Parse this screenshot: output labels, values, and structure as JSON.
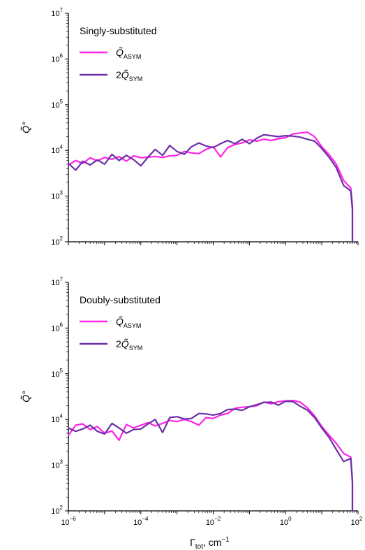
{
  "chart_data": [
    {
      "type": "line",
      "title": "Singly-substituted",
      "ylabel": "Q̃°",
      "xlabel": "",
      "x_scale": "log",
      "y_scale": "log",
      "xlim": [
        1e-06,
        100
      ],
      "ylim": [
        100,
        10000000
      ],
      "grid": false,
      "legend_position": "top-left",
      "y_ticks": [
        {
          "base": "10",
          "exp": "2",
          "value": 100
        },
        {
          "base": "10",
          "exp": "3",
          "value": 1000
        },
        {
          "base": "10",
          "exp": "4",
          "value": 10000
        },
        {
          "base": "10",
          "exp": "5",
          "value": 100000
        },
        {
          "base": "10",
          "exp": "6",
          "value": 1000000
        },
        {
          "base": "10",
          "exp": "7",
          "value": 10000000
        }
      ],
      "x_ticks": [],
      "series": [
        {
          "name_prefix": "",
          "name_main": "Q̃",
          "name_sub": "ASYM",
          "color": "#ff22e8",
          "x": [
            1e-06,
            1.6e-06,
            2.5e-06,
            4e-06,
            6.3e-06,
            1e-05,
            1.6e-05,
            2.5e-05,
            4e-05,
            6.3e-05,
            0.0001,
            0.00016,
            0.00025,
            0.0004,
            0.00063,
            0.001,
            0.0016,
            0.0025,
            0.004,
            0.0063,
            0.01,
            0.016,
            0.025,
            0.04,
            0.063,
            0.1,
            0.16,
            0.25,
            0.4,
            0.63,
            1,
            1.6,
            2.5,
            4,
            6.3,
            10,
            16,
            25,
            40,
            63,
            70
          ],
          "y": [
            4800,
            6000,
            5200,
            6900,
            5900,
            7000,
            6400,
            7300,
            5800,
            7600,
            6900,
            7100,
            7400,
            7000,
            7600,
            7800,
            9500,
            8800,
            8500,
            10500,
            12000,
            7200,
            11500,
            13500,
            14500,
            17000,
            16000,
            17500,
            16500,
            18000,
            19000,
            23000,
            24000,
            25000,
            20000,
            12000,
            8000,
            5000,
            2200,
            1500,
            600
          ]
        },
        {
          "name_prefix": "2",
          "name_main": "Q̃",
          "name_sub": "SYM",
          "color": "#6a2fa8",
          "x": [
            1e-06,
            1.6e-06,
            2.5e-06,
            4e-06,
            6.3e-06,
            1e-05,
            1.6e-05,
            2.5e-05,
            4e-05,
            6.3e-05,
            0.0001,
            0.00016,
            0.00025,
            0.0004,
            0.00063,
            0.001,
            0.0016,
            0.0025,
            0.004,
            0.0063,
            0.01,
            0.016,
            0.025,
            0.04,
            0.063,
            0.1,
            0.16,
            0.25,
            0.4,
            0.63,
            1,
            1.6,
            2.5,
            4,
            6.3,
            10,
            16,
            25,
            40,
            63,
            70
          ],
          "y": [
            5200,
            3700,
            5800,
            4800,
            6200,
            5000,
            8200,
            6000,
            7800,
            6300,
            4600,
            7200,
            10500,
            7800,
            12800,
            9500,
            8200,
            12000,
            14500,
            12500,
            11500,
            14000,
            16500,
            14000,
            17500,
            14000,
            18500,
            22000,
            21000,
            20000,
            21000,
            20500,
            19500,
            17500,
            16000,
            11000,
            7000,
            4200,
            1700,
            1300,
            500
          ]
        }
      ]
    },
    {
      "type": "line",
      "title": "Doubly-substituted",
      "ylabel": "Q̃°",
      "xlabel_base": "Γ",
      "xlabel_sub": "tot",
      "xlabel_rest": ", cm",
      "xlabel_exp": "−1",
      "x_scale": "log",
      "y_scale": "log",
      "xlim": [
        1e-06,
        100
      ],
      "ylim": [
        100,
        10000000
      ],
      "grid": false,
      "legend_position": "top-left",
      "y_ticks": [
        {
          "base": "10",
          "exp": "2",
          "value": 100
        },
        {
          "base": "10",
          "exp": "3",
          "value": 1000
        },
        {
          "base": "10",
          "exp": "4",
          "value": 10000
        },
        {
          "base": "10",
          "exp": "5",
          "value": 100000
        },
        {
          "base": "10",
          "exp": "6",
          "value": 1000000
        },
        {
          "base": "10",
          "exp": "7",
          "value": 10000000
        }
      ],
      "x_ticks": [
        {
          "base": "10",
          "exp": "−6",
          "value": 1e-06
        },
        {
          "base": "10",
          "exp": "−4",
          "value": 0.0001
        },
        {
          "base": "10",
          "exp": "−2",
          "value": 0.01
        },
        {
          "base": "10",
          "exp": "0",
          "value": 1
        },
        {
          "base": "10",
          "exp": "2",
          "value": 100
        }
      ],
      "series": [
        {
          "name_prefix": "",
          "name_main": "Q̃",
          "name_sub": "ASYM",
          "color": "#ff22e8",
          "x": [
            1e-06,
            1.6e-06,
            2.5e-06,
            4e-06,
            6.3e-06,
            1e-05,
            1.6e-05,
            2.5e-05,
            4e-05,
            6.3e-05,
            0.0001,
            0.00016,
            0.00025,
            0.0004,
            0.00063,
            0.001,
            0.0016,
            0.0025,
            0.004,
            0.0063,
            0.01,
            0.016,
            0.025,
            0.04,
            0.063,
            0.1,
            0.16,
            0.25,
            0.4,
            0.63,
            1,
            1.6,
            2.5,
            4,
            6.3,
            10,
            16,
            25,
            40,
            63,
            70
          ],
          "y": [
            4500,
            7500,
            8000,
            6000,
            7000,
            5000,
            5600,
            3500,
            7800,
            6500,
            7500,
            8500,
            7200,
            8200,
            9500,
            9000,
            10000,
            9000,
            7500,
            11000,
            10500,
            12500,
            13500,
            17500,
            18500,
            19000,
            20000,
            24000,
            22000,
            24500,
            25500,
            26000,
            24000,
            18000,
            12000,
            7000,
            4500,
            3000,
            1800,
            1500,
            400
          ]
        },
        {
          "name_prefix": "2",
          "name_main": "Q̃",
          "name_sub": "SYM",
          "color": "#6a2fa8",
          "x": [
            1e-06,
            1.6e-06,
            2.5e-06,
            4e-06,
            6.3e-06,
            1e-05,
            1.6e-05,
            2.5e-05,
            4e-05,
            6.3e-05,
            0.0001,
            0.00016,
            0.00025,
            0.0004,
            0.00063,
            0.001,
            0.0016,
            0.0025,
            0.004,
            0.0063,
            0.01,
            0.016,
            0.025,
            0.04,
            0.063,
            0.1,
            0.16,
            0.25,
            0.4,
            0.63,
            1,
            1.6,
            2.5,
            4,
            6.3,
            10,
            16,
            25,
            40,
            63,
            70
          ],
          "y": [
            6500,
            5500,
            6200,
            7500,
            5500,
            4800,
            8200,
            6500,
            5000,
            6000,
            6200,
            8000,
            10000,
            5200,
            11000,
            11500,
            10200,
            10500,
            13500,
            13200,
            12500,
            13500,
            16500,
            16800,
            15800,
            19000,
            21000,
            23500,
            24000,
            20500,
            25000,
            24500,
            19500,
            16000,
            11000,
            6500,
            4000,
            2200,
            1200,
            1400,
            450
          ]
        }
      ]
    }
  ]
}
